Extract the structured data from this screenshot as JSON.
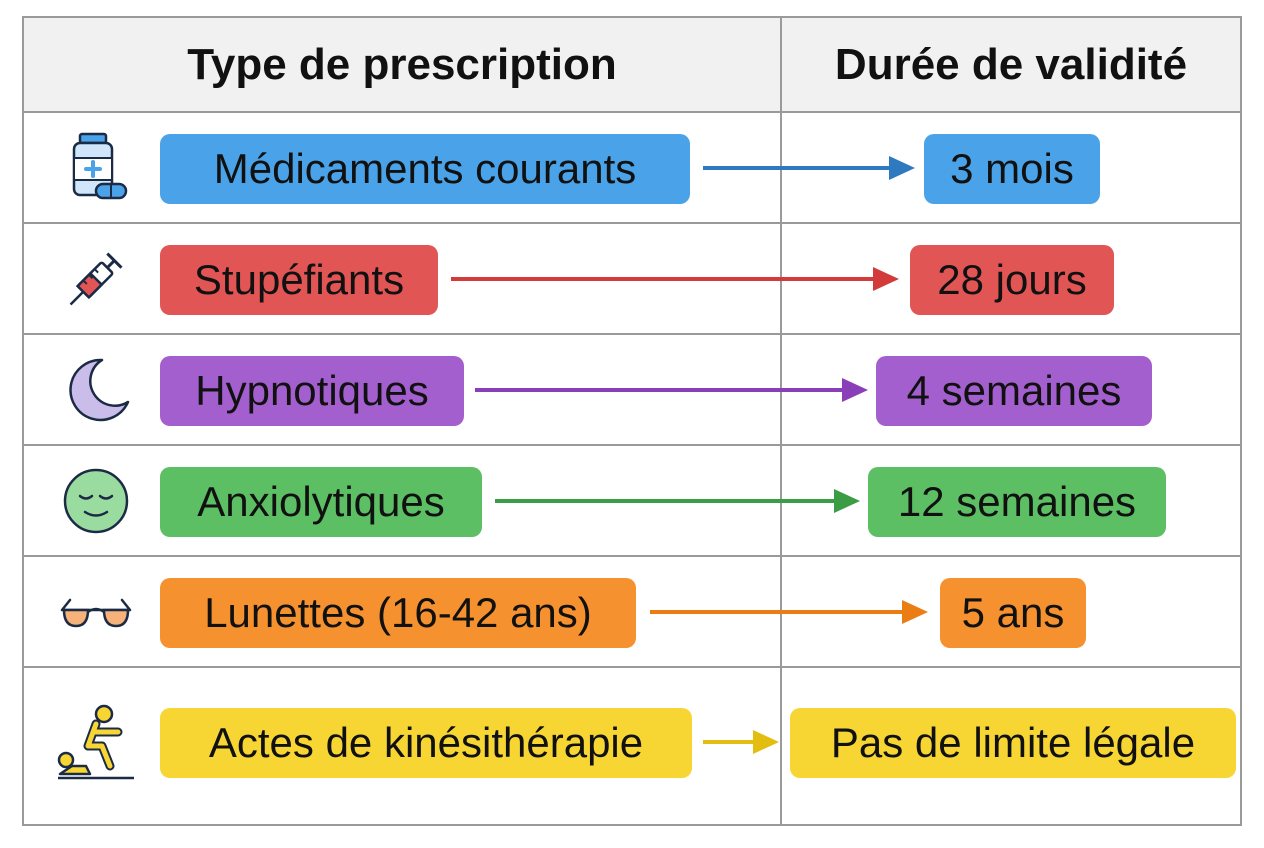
{
  "header": {
    "type_label": "Type de prescription",
    "duration_label": "Durée de validité"
  },
  "rows": [
    {
      "type": "Médicaments courants",
      "duration": "3 mois",
      "color": "#4aa3e8",
      "arrow_color": "#2f79c0",
      "icon": "medicine-bottle-icon"
    },
    {
      "type": "Stupéfiants",
      "duration": "28 jours",
      "color": "#e25555",
      "arrow_color": "#d33a3a",
      "icon": "syringe-icon"
    },
    {
      "type": "Hypnotiques",
      "duration": "4 semaines",
      "color": "#a45fce",
      "arrow_color": "#8a3fb8",
      "icon": "moon-icon"
    },
    {
      "type": "Anxiolytiques",
      "duration": "12 semaines",
      "color": "#5cbf64",
      "arrow_color": "#3a9c44",
      "icon": "calm-face-icon"
    },
    {
      "type": "Lunettes (16-42 ans)",
      "duration": "5 ans",
      "color": "#f5922f",
      "arrow_color": "#ea7d14",
      "icon": "glasses-icon"
    },
    {
      "type": "Actes de kinésithérapie",
      "duration": "Pas de limite légale",
      "color": "#f7d633",
      "arrow_color": "#e3bd10",
      "icon": "physiotherapy-icon"
    }
  ]
}
